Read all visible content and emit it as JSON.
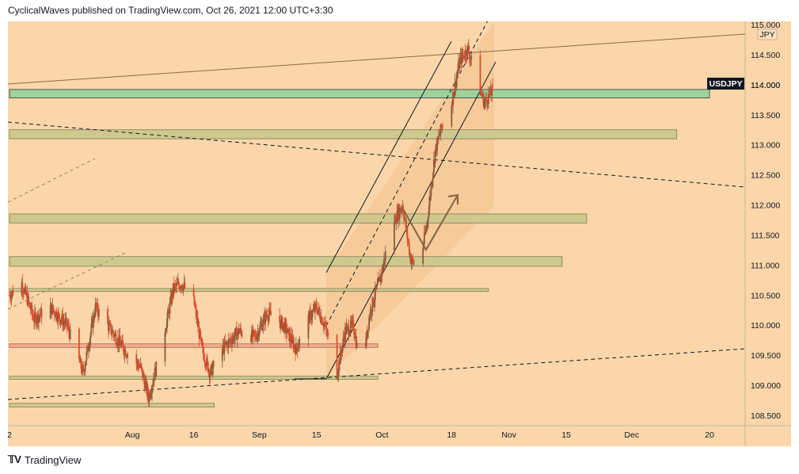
{
  "header": {
    "publisher": "CyclicalWaves published on TradingView.com, Oct 26, 2021 12:00 UTC+3:30"
  },
  "footer": {
    "brand": "TradingView"
  },
  "colors": {
    "background": "#fad6aa",
    "channel_fill": "#f5c691",
    "zone_fill": "#cfc98d",
    "zone_fill_light": "#e1d49a",
    "blue_zone_fill": "#9fd19b",
    "candle": "#e24a2a",
    "symbol_badge": "#131722"
  },
  "chart_data": {
    "type": "candlestick",
    "symbol": "USDJPY",
    "currency": "JPY",
    "ylim": [
      108.3,
      115.1
    ],
    "y_ticks": [
      108.5,
      109.0,
      109.5,
      110.0,
      110.5,
      111.0,
      111.5,
      112.0,
      112.5,
      113.0,
      113.5,
      114.0,
      114.5,
      115.0
    ],
    "y_tick_labels": [
      "108.500",
      "109.000",
      "109.500",
      "110.000",
      "110.500",
      "111.000",
      "111.500",
      "112.000",
      "112.500",
      "113.000",
      "113.500",
      "114.000",
      "114.500",
      "115.000"
    ],
    "x_range": [
      "2021-07-02",
      "2021-12-24"
    ],
    "x_ticks": [
      {
        "date": "2021-07-02",
        "label": "2"
      },
      {
        "date": "2021-08-01",
        "label": "Aug"
      },
      {
        "date": "2021-08-16",
        "label": "16"
      },
      {
        "date": "2021-09-01",
        "label": "Sep"
      },
      {
        "date": "2021-09-15",
        "label": "15"
      },
      {
        "date": "2021-10-01",
        "label": "Oct"
      },
      {
        "date": "2021-10-18",
        "label": "18"
      },
      {
        "date": "2021-11-01",
        "label": "Nov"
      },
      {
        "date": "2021-11-15",
        "label": "15"
      },
      {
        "date": "2021-12-01",
        "label": "Dec"
      },
      {
        "date": "2021-12-20",
        "label": "20"
      }
    ],
    "last_price_label": "114.000",
    "price_path": [
      [
        "2021-07-02",
        110.5
      ],
      [
        "2021-07-05",
        110.7
      ],
      [
        "2021-07-08",
        110.1
      ],
      [
        "2021-07-12",
        110.3
      ],
      [
        "2021-07-16",
        110.0
      ],
      [
        "2021-07-20",
        109.2
      ],
      [
        "2021-07-23",
        110.3
      ],
      [
        "2021-07-27",
        109.9
      ],
      [
        "2021-07-30",
        109.6
      ],
      [
        "2021-08-03",
        109.3
      ],
      [
        "2021-08-05",
        108.8
      ],
      [
        "2021-08-08",
        109.6
      ],
      [
        "2021-08-11",
        110.6
      ],
      [
        "2021-08-13",
        110.7
      ],
      [
        "2021-08-16",
        110.4
      ],
      [
        "2021-08-18",
        109.6
      ],
      [
        "2021-08-20",
        109.2
      ],
      [
        "2021-08-23",
        109.6
      ],
      [
        "2021-08-27",
        109.9
      ],
      [
        "2021-08-31",
        109.8
      ],
      [
        "2021-09-03",
        110.2
      ],
      [
        "2021-09-07",
        110.0
      ],
      [
        "2021-09-10",
        109.6
      ],
      [
        "2021-09-13",
        110.1
      ],
      [
        "2021-09-15",
        110.3
      ],
      [
        "2021-09-17",
        110.0
      ],
      [
        "2021-09-20",
        109.2
      ],
      [
        "2021-09-22",
        109.9
      ],
      [
        "2021-09-24",
        110.0
      ],
      [
        "2021-09-26",
        109.2
      ],
      [
        "2021-09-28",
        110.2
      ],
      [
        "2021-10-01",
        110.9
      ],
      [
        "2021-10-03",
        111.6
      ],
      [
        "2021-10-06",
        112.0
      ],
      [
        "2021-10-08",
        111.1
      ],
      [
        "2021-10-10",
        110.9
      ],
      [
        "2021-10-12",
        111.7
      ],
      [
        "2021-10-14",
        112.9
      ],
      [
        "2021-10-16",
        113.4
      ],
      [
        "2021-10-18",
        113.7
      ],
      [
        "2021-10-20",
        114.4
      ],
      [
        "2021-10-22",
        114.6
      ],
      [
        "2021-10-24",
        114.1
      ],
      [
        "2021-10-26",
        113.7
      ],
      [
        "2021-10-28",
        113.9
      ]
    ],
    "drawings": {
      "horizontal_zones": [
        {
          "name": "zone-113-8",
          "start": "2021-07-02",
          "end": "2021-12-20",
          "top": 113.92,
          "bottom": 113.78,
          "style": "blue"
        },
        {
          "name": "zone-113-2",
          "start": "2021-07-02",
          "end": "2021-12-12",
          "top": 113.25,
          "bottom": 113.1,
          "style": "olive"
        },
        {
          "name": "zone-111-8",
          "start": "2021-07-02",
          "end": "2021-11-20",
          "top": 111.85,
          "bottom": 111.7,
          "style": "olive"
        },
        {
          "name": "zone-111-1",
          "start": "2021-07-02",
          "end": "2021-11-14",
          "top": 111.14,
          "bottom": 110.98,
          "style": "olive"
        },
        {
          "name": "zone-110-6",
          "start": "2021-07-02",
          "end": "2021-10-27",
          "top": 110.61,
          "bottom": 110.56,
          "style": "olive"
        },
        {
          "name": "zone-109-7",
          "start": "2021-07-02",
          "end": "2021-09-30",
          "top": 109.69,
          "bottom": 109.63,
          "style": "red"
        },
        {
          "name": "zone-109-1",
          "start": "2021-07-02",
          "end": "2021-09-30",
          "top": 109.15,
          "bottom": 109.1,
          "style": "olive"
        },
        {
          "name": "zone-108-7",
          "start": "2021-07-02",
          "end": "2021-08-21",
          "top": 108.7,
          "bottom": 108.64,
          "style": "olive"
        }
      ]
    }
  }
}
